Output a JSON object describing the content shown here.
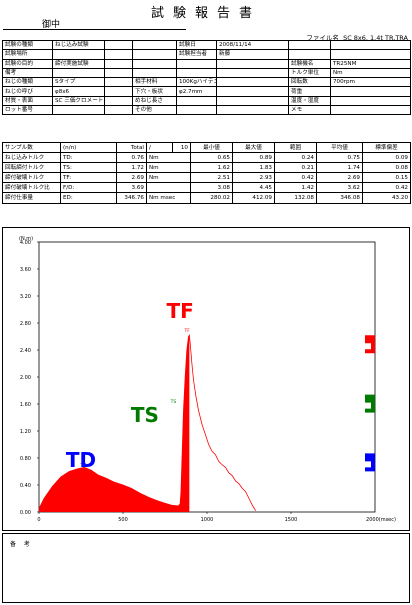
{
  "header": {
    "title": "試験報告書",
    "recipient": "御中",
    "file_label": "ファイル名",
    "file_name": "SC 8x6. 1.4t TR.TRA"
  },
  "info": {
    "rows": [
      [
        "試験の種類",
        "ねじ込み試験",
        "",
        "",
        "試験日",
        "2008/11/14",
        "",
        ""
      ],
      [
        "試験場所",
        "",
        "",
        "",
        "試験担当者",
        "新藤",
        "",
        ""
      ],
      [
        "試験の目的",
        "締付実施試験",
        "",
        "",
        "",
        "",
        "試験機名",
        "TR25NM"
      ],
      [
        "備考",
        "",
        "",
        "",
        "",
        "",
        "トルク単位",
        "Nm"
      ],
      [
        "ねじの種類",
        "Sタイプ",
        "",
        "相手材料",
        "100Kgハイテン",
        "",
        "回転数",
        "700rpm"
      ],
      [
        "ねじの呼び",
        "φ8x6",
        "",
        "下穴・板状",
        "φ2.7mm",
        "",
        "荷重",
        ""
      ],
      [
        "材質・表面",
        "SC 三価クロメート",
        "",
        "めねじ長さ",
        "",
        "",
        "温度・湿度",
        ""
      ],
      [
        "ロット番号",
        "",
        "",
        "その他",
        "",
        "",
        "メモ",
        ""
      ]
    ]
  },
  "stats": {
    "header": [
      "サンプル数",
      "(n/n)",
      "Total",
      "/",
      "10",
      "最小値",
      "最大値",
      "範囲",
      "平均値",
      "標準偏差"
    ],
    "rows": [
      [
        "ねじ込みトルク",
        "TD:",
        "0.76",
        "Nm",
        "0.65",
        "0.89",
        "0.24",
        "0.75",
        "0.09"
      ],
      [
        "回転締付トルク",
        "TS:",
        "1.72",
        "Nm",
        "1.62",
        "1.83",
        "0.21",
        "1.74",
        "0.08"
      ],
      [
        "締付破壊トルク",
        "TF:",
        "2.69",
        "Nm",
        "2.51",
        "2.93",
        "0.42",
        "2.69",
        "0.15"
      ],
      [
        "締付破壊トルク比",
        "F/D:",
        "3.69",
        "",
        "3.08",
        "4.45",
        "1.42",
        "3.62",
        "0.42"
      ],
      [
        "締付仕事量",
        "ED:",
        "346.76",
        "Nm msec",
        "280.02",
        "412.09",
        "132.08",
        "346.08",
        "43.20"
      ]
    ]
  },
  "chart_data": {
    "type": "area",
    "y_unit_label": "(N.m)",
    "x_unit_label": "2000(msec)",
    "xlim": [
      0,
      2000
    ],
    "ylim": [
      0,
      4.0
    ],
    "x_ticks": [
      "0",
      "500",
      "1000",
      "1500"
    ],
    "y_ticks": [
      "0.00",
      "0.40",
      "0.80",
      "1.20",
      "1.60",
      "2.00",
      "2.40",
      "2.80",
      "3.20",
      "3.60",
      "4.00"
    ],
    "series": [
      {
        "points": [
          [
            0,
            0.05
          ],
          [
            30,
            0.2
          ],
          [
            80,
            0.38
          ],
          [
            130,
            0.52
          ],
          [
            180,
            0.6
          ],
          [
            230,
            0.64
          ],
          [
            270,
            0.66
          ],
          [
            310,
            0.62
          ],
          [
            350,
            0.55
          ],
          [
            400,
            0.5
          ],
          [
            450,
            0.44
          ],
          [
            500,
            0.4
          ],
          [
            550,
            0.35
          ],
          [
            600,
            0.28
          ],
          [
            650,
            0.22
          ],
          [
            700,
            0.17
          ],
          [
            750,
            0.13
          ],
          [
            790,
            0.1
          ],
          [
            830,
            0.09
          ],
          [
            840,
            0.12
          ],
          [
            845,
            0.3
          ],
          [
            850,
            0.7
          ],
          [
            855,
            1.1
          ],
          [
            860,
            1.5
          ],
          [
            870,
            2.0
          ],
          [
            880,
            2.4
          ],
          [
            890,
            2.6
          ],
          [
            895,
            2.62
          ],
          [
            900,
            2.5
          ],
          [
            910,
            2.2
          ],
          [
            920,
            1.95
          ],
          [
            935,
            1.7
          ],
          [
            950,
            1.5
          ],
          [
            970,
            1.3
          ],
          [
            990,
            1.15
          ],
          [
            1010,
            1.0
          ],
          [
            1030,
            0.9
          ],
          [
            1050,
            0.85
          ],
          [
            1070,
            0.75
          ],
          [
            1090,
            0.7
          ],
          [
            1110,
            0.66
          ],
          [
            1130,
            0.58
          ],
          [
            1150,
            0.54
          ],
          [
            1170,
            0.46
          ],
          [
            1190,
            0.42
          ],
          [
            1210,
            0.35
          ],
          [
            1230,
            0.3
          ],
          [
            1250,
            0.2
          ],
          [
            1270,
            0.1
          ],
          [
            1290,
            0.02
          ]
        ]
      }
    ],
    "fill_until_x": 895,
    "markers": [
      {
        "label": "TD",
        "x": 265,
        "y": 0.66,
        "color": "#0000ff"
      },
      {
        "label": "TS",
        "x": 800,
        "y": 1.6,
        "color": "#007a00"
      },
      {
        "label": "TF",
        "x": 882,
        "y": 2.65,
        "color": "#ff0000"
      }
    ],
    "big_labels": [
      {
        "text": "TF",
        "color": "#ff0000"
      },
      {
        "text": "TS",
        "color": "#007a00"
      },
      {
        "text": "TD",
        "color": "#0000ff"
      }
    ],
    "side_markers": [
      {
        "y": 2.5,
        "color": "#ff0000"
      },
      {
        "y": 1.62,
        "color": "#007a00"
      },
      {
        "y": 0.75,
        "color": "#0000ff"
      }
    ]
  },
  "remarks": {
    "label": "备 考"
  }
}
